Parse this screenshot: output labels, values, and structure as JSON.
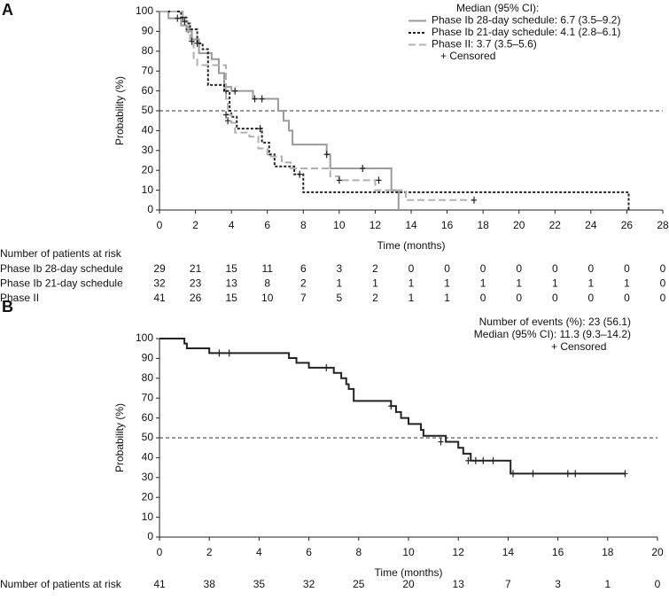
{
  "chart_data": [
    {
      "panel_label": "A",
      "type": "step",
      "ylabel": "Probability (%)",
      "xlabel": "Time (months)",
      "xlim": [
        0,
        28
      ],
      "ylim": [
        0,
        100
      ],
      "xticks": [
        0,
        2,
        4,
        6,
        8,
        10,
        12,
        14,
        16,
        18,
        20,
        22,
        24,
        26,
        28
      ],
      "yticks": [
        0,
        10,
        20,
        30,
        40,
        50,
        60,
        70,
        80,
        90,
        100
      ],
      "reference_y": 50,
      "legend_title": "Median (95% CI):",
      "legend_censored": "+ Censored",
      "series": [
        {
          "name": "Phase Ib 28-day schedule: 6.7 (3.5–9.2)",
          "color": "#9a9a9a",
          "line_style": "solid",
          "x": [
            0,
            0.5,
            1.2,
            1.5,
            1.8,
            2.2,
            2.9,
            3.3,
            3.6,
            4.0,
            5.2,
            6.6,
            6.9,
            7.2,
            7.4,
            9.3,
            9.5,
            12.9,
            13.3
          ],
          "values": [
            100,
            96.6,
            93,
            90,
            86,
            79,
            76,
            69,
            62,
            60,
            56,
            50,
            45,
            40,
            33,
            28,
            21,
            10,
            0
          ],
          "censored": {
            "x": [
              1.0,
              4.2,
              5.3,
              5.7,
              9.3,
              11.3
            ],
            "y": [
              96.6,
              60,
              56,
              56,
              28,
              21
            ]
          }
        },
        {
          "name": "Phase Ib 21-day schedule: 4.1 (2.8–6.1)",
          "color": "#222222",
          "line_style": "dotted",
          "x": [
            0,
            1.2,
            1.5,
            1.7,
            2.1,
            2.4,
            2.7,
            3.6,
            3.9,
            4.0,
            4.3,
            5.7,
            6.1,
            6.4,
            7.5,
            8.0,
            26.1
          ],
          "values": [
            100,
            97,
            94,
            91,
            84,
            81,
            63,
            60,
            50,
            47,
            41,
            34,
            28,
            22,
            18,
            9,
            0
          ],
          "censored": {
            "x": [
              1.3,
              1.6,
              2.1,
              3.7,
              3.8,
              5.6,
              7.8
            ],
            "y": [
              97,
              91,
              84,
              60,
              45,
              41,
              18
            ]
          }
        },
        {
          "name": "Phase II: 3.7 (3.5–5.6)",
          "color": "#b0b0b0",
          "line_style": "dashed",
          "x": [
            0,
            1.3,
            1.6,
            1.7,
            1.9,
            2.1,
            3.7,
            3.8,
            4.0,
            4.2,
            5.0,
            5.5,
            6.0,
            6.8,
            7.3,
            9.5,
            10.0,
            12.0,
            13.7,
            17.5
          ],
          "values": [
            100,
            95,
            90,
            85,
            76,
            73,
            56,
            48,
            44,
            39,
            37,
            31,
            27,
            24,
            21,
            17,
            15,
            10,
            5,
            5
          ],
          "censored": {
            "x": [
              1.4,
              1.8,
              3.7,
              10.0,
              12.2,
              17.5
            ],
            "y": [
              95,
              85,
              48,
              15,
              15,
              5
            ]
          }
        }
      ],
      "risk_table": {
        "title": "Number of patients at risk",
        "rows": [
          {
            "label": "Phase Ib 28-day schedule",
            "values": [
              29,
              21,
              15,
              11,
              6,
              3,
              2,
              0,
              0,
              0,
              0,
              0,
              0,
              0,
              0
            ]
          },
          {
            "label": "Phase Ib 21-day schedule",
            "values": [
              32,
              23,
              13,
              8,
              2,
              1,
              1,
              1,
              1,
              1,
              1,
              1,
              1,
              1,
              0
            ]
          },
          {
            "label": "Phase II",
            "values": [
              41,
              26,
              15,
              10,
              7,
              5,
              2,
              1,
              1,
              0,
              0,
              0,
              0,
              0,
              0
            ]
          }
        ]
      }
    },
    {
      "panel_label": "B",
      "type": "step",
      "ylabel": "Probability (%)",
      "xlabel": "Time (months)",
      "xlim": [
        0,
        20
      ],
      "ylim": [
        0,
        100
      ],
      "xticks": [
        0,
        2,
        4,
        6,
        8,
        10,
        12,
        14,
        16,
        18,
        20
      ],
      "yticks": [
        0,
        10,
        20,
        30,
        40,
        50,
        60,
        70,
        80,
        90,
        100
      ],
      "reference_y": 50,
      "annotations": [
        "Number of events (%): 23 (56.1)",
        "Median (95% CI): 11.3 (9.3–14.2)",
        "+ Censored"
      ],
      "series": [
        {
          "color": "#222222",
          "line_style": "solid",
          "x": [
            0,
            1.0,
            1.1,
            2.0,
            5.2,
            5.5,
            6.0,
            7.0,
            7.3,
            7.5,
            7.6,
            7.8,
            9.3,
            9.5,
            9.7,
            10.0,
            10.5,
            10.6,
            11.5,
            12.0,
            12.2,
            12.5,
            14.1,
            18.7
          ],
          "values": [
            100,
            97.5,
            95.1,
            92.7,
            90.2,
            87.8,
            85.3,
            82.7,
            80,
            77,
            74.6,
            68.6,
            66,
            63,
            60,
            57,
            54,
            51,
            48,
            45,
            42,
            38.5,
            32,
            32
          ],
          "censored": {
            "x": [
              2.4,
              2.8,
              6.7,
              9.3,
              11.3,
              12.4,
              12.7,
              13.0,
              13.4,
              14.2,
              15.0,
              16.4,
              16.7,
              18.7
            ],
            "y": [
              92.7,
              92.7,
              85.3,
              66,
              48,
              38.5,
              38.5,
              38.5,
              38.5,
              32,
              32,
              32,
              32,
              32
            ]
          }
        }
      ],
      "risk_table": {
        "title": "Number of patients at risk",
        "rows": [
          {
            "values": [
              41,
              38,
              35,
              32,
              25,
              20,
              13,
              7,
              3,
              1,
              0
            ]
          }
        ]
      }
    }
  ]
}
